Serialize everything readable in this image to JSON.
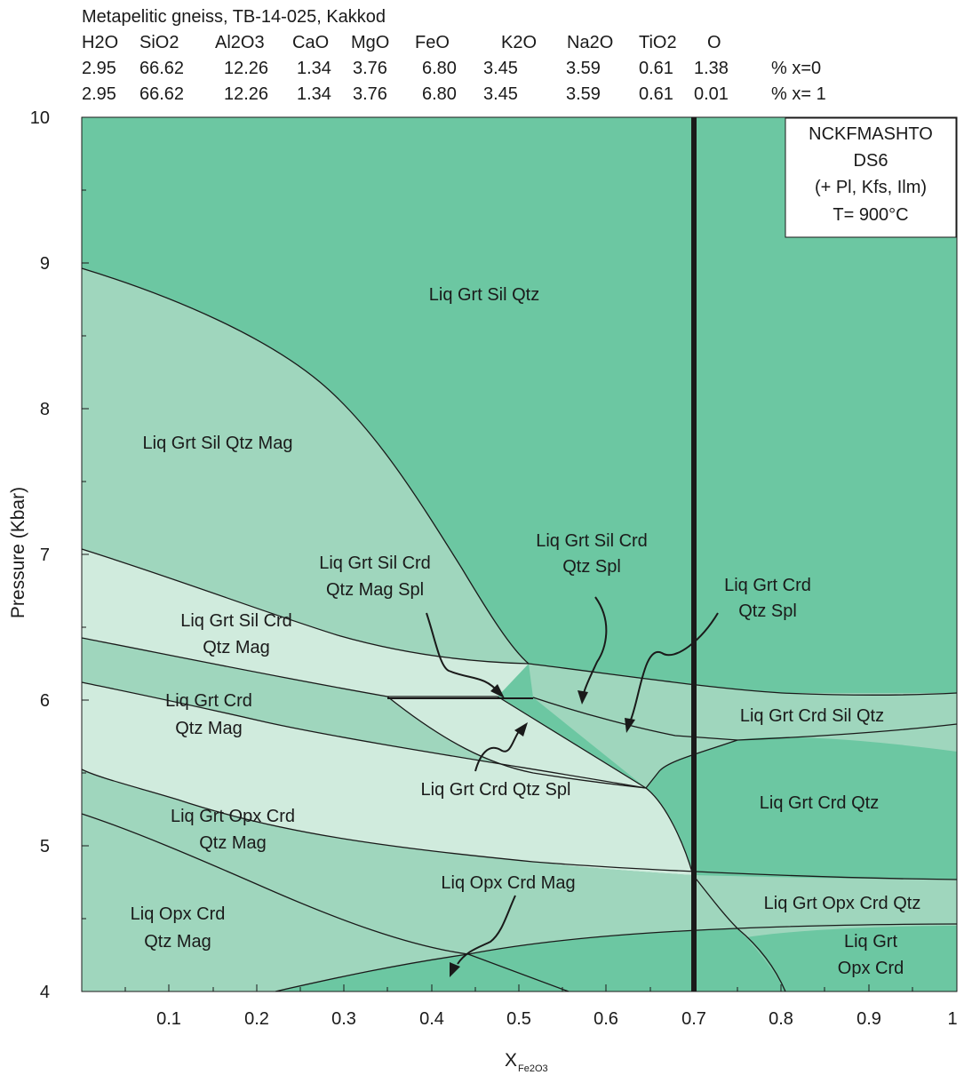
{
  "header": {
    "title": "Metapelitic gneiss, TB-14-025, Kakkod",
    "oxides": [
      "H2O",
      "SiO2",
      "Al2O3",
      "CaO",
      "MgO",
      "FeO",
      "K2O",
      "Na2O",
      "TiO2",
      "O"
    ],
    "rows": [
      {
        "values": [
          "2.95",
          "66.62",
          "12.26",
          "1.34",
          "3.76",
          "6.80",
          "3.45",
          "3.59",
          "0.61",
          "1.38"
        ],
        "label": "% x=0"
      },
      {
        "values": [
          "2.95",
          "66.62",
          "12.26",
          "1.34",
          "3.76",
          "6.80",
          "3.45",
          "3.59",
          "0.61",
          "0.01"
        ],
        "label": "% x= 1"
      }
    ]
  },
  "infobox": {
    "lines": [
      "NCKFMASHTO",
      "DS6",
      "(+ Pl, Kfs, Ilm)",
      "T= 900°C"
    ]
  },
  "axes": {
    "x_label_main": "X",
    "x_label_sub": "Fe2O3",
    "y_label": "Pressure (Kbar)",
    "x_range": [
      0,
      1
    ],
    "y_range": [
      4,
      10
    ],
    "x_ticks": [
      "0.1",
      "0.2",
      "0.3",
      "0.4",
      "0.5",
      "0.6",
      "0.7",
      "0.8",
      "0.9",
      "1"
    ],
    "y_ticks": [
      "4",
      "5",
      "6",
      "7",
      "8",
      "9",
      "10"
    ]
  },
  "colors": {
    "dark_green": "#6cc7a2",
    "mid_green": "#9fd6bd",
    "light_green": "#d0ebdd",
    "line": "#1a1a1a"
  },
  "fields": {
    "f1": "Liq Grt Sil Qtz",
    "f2": "Liq Grt Sil Qtz Mag",
    "f3a": "Liq Grt Sil Crd",
    "f3b": "Qtz Mag Spl",
    "f4a": "Liq Grt Sil Crd",
    "f4b": "Qtz Spl",
    "f5a": "Liq Grt Crd",
    "f5b": "Qtz Spl",
    "f6a": "Liq Grt Sil Crd",
    "f6b": "Qtz Mag",
    "f7a": "Liq Grt Crd",
    "f7b": "Qtz Mag",
    "f8": "Liq Grt Crd Sil Qtz",
    "f9": "Liq Grt Crd Qtz Spl",
    "f10": "Liq Grt Crd Qtz",
    "f11a": "Liq Grt Opx Crd",
    "f11b": "Qtz Mag",
    "f12": "Liq Opx Crd Mag",
    "f13": "Liq Grt Opx Crd Qtz",
    "f14a": "Liq Opx Crd",
    "f14b": "Qtz Mag",
    "f15a": "Liq Grt",
    "f15b": "Opx Crd"
  },
  "section_line_x": 0.7
}
